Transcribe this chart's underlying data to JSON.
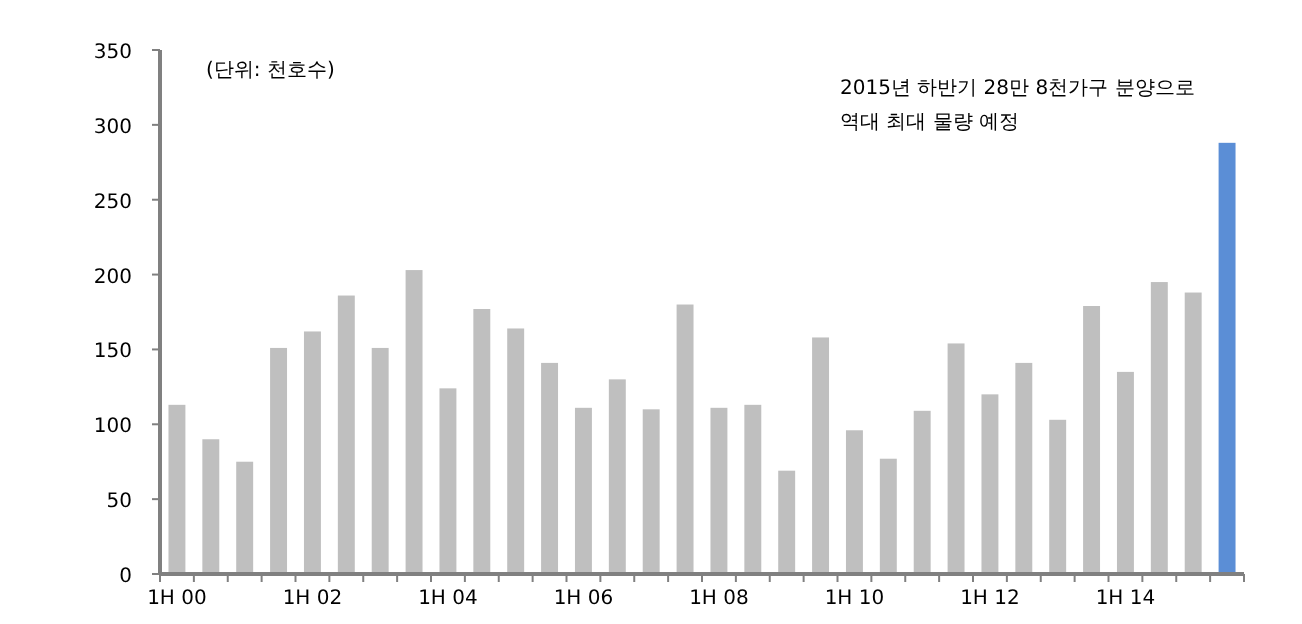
{
  "chart_data": {
    "type": "bar",
    "categories": [
      "1H 00",
      null,
      null,
      null,
      "1H 02",
      null,
      null,
      null,
      "1H 04",
      null,
      null,
      null,
      "1H 06",
      null,
      null,
      null,
      "1H 08",
      null,
      null,
      null,
      "1H 10",
      null,
      null,
      null,
      "1H 12",
      null,
      null,
      null,
      "1H 14",
      null,
      null,
      null
    ],
    "values": [
      113,
      90,
      75,
      151,
      162,
      186,
      151,
      203,
      124,
      177,
      164,
      141,
      111,
      130,
      110,
      180,
      111,
      113,
      69,
      158,
      96,
      77,
      109,
      154,
      120,
      141,
      103,
      179,
      135,
      195,
      188,
      288
    ],
    "colors": [
      "#bfbfbf",
      "#bfbfbf",
      "#bfbfbf",
      "#bfbfbf",
      "#bfbfbf",
      "#bfbfbf",
      "#bfbfbf",
      "#bfbfbf",
      "#bfbfbf",
      "#bfbfbf",
      "#bfbfbf",
      "#bfbfbf",
      "#bfbfbf",
      "#bfbfbf",
      "#bfbfbf",
      "#bfbfbf",
      "#bfbfbf",
      "#bfbfbf",
      "#bfbfbf",
      "#bfbfbf",
      "#bfbfbf",
      "#bfbfbf",
      "#bfbfbf",
      "#bfbfbf",
      "#bfbfbf",
      "#bfbfbf",
      "#bfbfbf",
      "#bfbfbf",
      "#bfbfbf",
      "#bfbfbf",
      "#bfbfbf",
      "#5b8ed6"
    ],
    "ylim": [
      0,
      350
    ],
    "yticks": [
      0,
      50,
      100,
      150,
      200,
      250,
      300,
      350
    ],
    "annotations": [
      "(단위: 천호수)",
      "2015년 하반기 28만 8천가구 분양으로\n역대 최대 물량 예정"
    ]
  }
}
